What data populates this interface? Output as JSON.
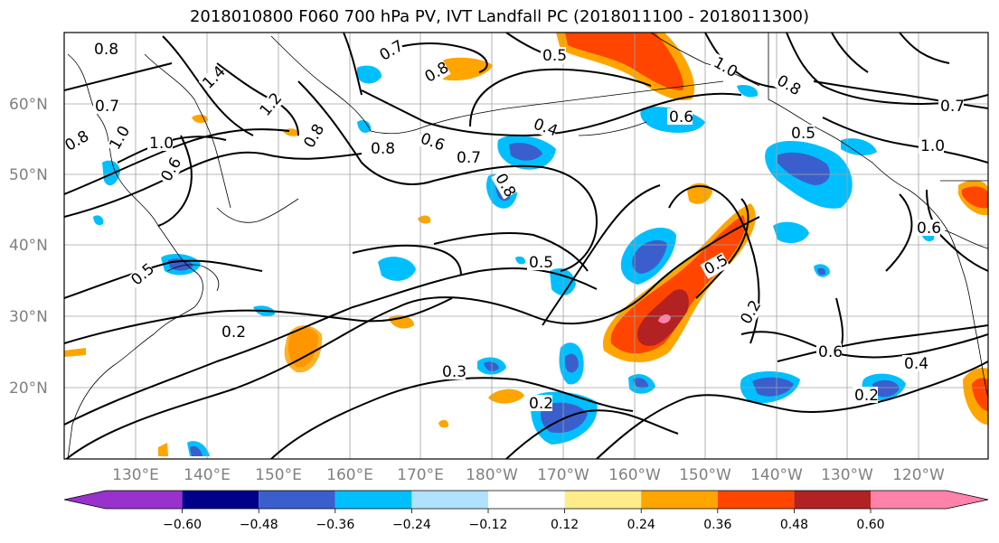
{
  "title": "2018010800 F060 700 hPa PV, IVT Landfall PC (2018011100 - 2018011300)",
  "latitude_labels": [
    "60°N",
    "50°N",
    "40°N",
    "30°N",
    "20°N"
  ],
  "longitude_labels": [
    "130°E",
    "140°E",
    "150°E",
    "160°E",
    "170°E",
    "180°W",
    "170°W",
    "160°W",
    "150°W",
    "140°W",
    "130°W",
    "120°W"
  ],
  "colorbar": {
    "ticks": [
      "−0.60",
      "−0.48",
      "−0.36",
      "−0.24",
      "−0.12",
      "0.12",
      "0.24",
      "0.36",
      "0.48",
      "0.60"
    ],
    "colors": [
      "#9932cc",
      "#00008b",
      "#3a5fcd",
      "#00bfff",
      "#b0e2ff",
      "#ffffff",
      "#ffec8b",
      "#ffa500",
      "#ff4500",
      "#b22222",
      "#ff82ab"
    ]
  },
  "contour_labels": [
    "0.8",
    "0.7",
    "0.5",
    "1.4",
    "1.2",
    "0.8",
    "0.7",
    "1.0",
    "0.8",
    "0.6",
    "1.0",
    "0.8",
    "0.6",
    "0.4",
    "0.7",
    "0.6",
    "0.8",
    "0.5",
    "0.2",
    "0.5",
    "0.5",
    "0.2",
    "0.3",
    "0.2",
    "0.6",
    "0.4",
    "0.2",
    "0.7",
    "1.0",
    "0.5",
    "0.8",
    "1.0",
    "0.6",
    "0.8"
  ]
}
